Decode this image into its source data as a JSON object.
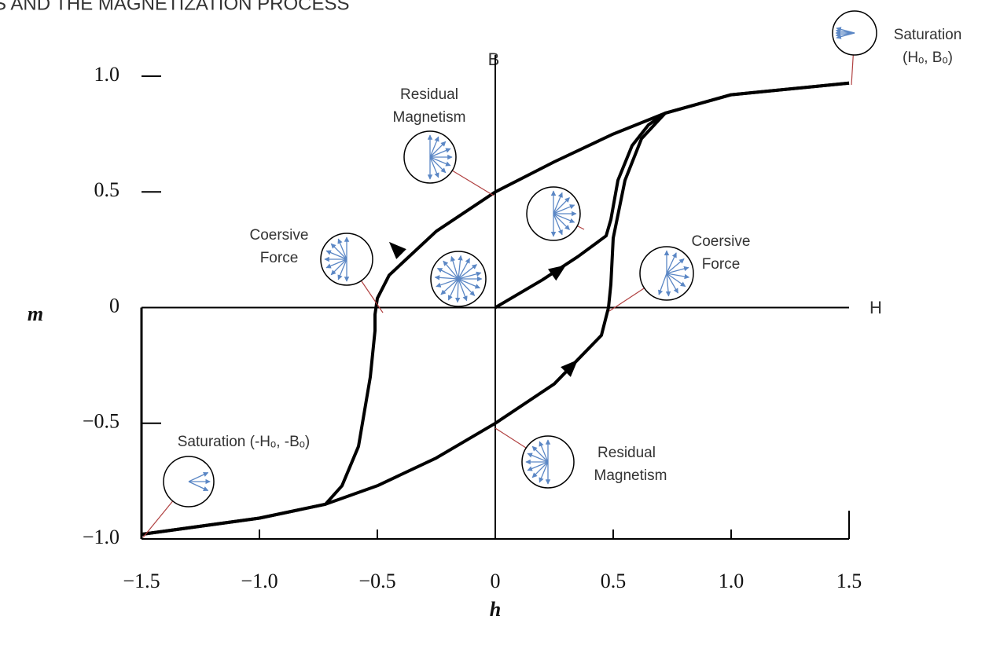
{
  "chart_data": {
    "type": "line",
    "title": "S AND THE MAGNETIZATION PROCESS",
    "x_label": "h",
    "y_label": "m",
    "x_axis_name": "H",
    "y_axis_name": "B",
    "xlim": [
      -1.5,
      1.5
    ],
    "ylim": [
      -1.0,
      1.0
    ],
    "xticks": [
      {
        "value": -1.5,
        "label": "−1.5"
      },
      {
        "value": -1.0,
        "label": "−1.0"
      },
      {
        "value": -0.5,
        "label": "−0.5"
      },
      0,
      0.5,
      {
        "value": 1.0,
        "label": "1.0"
      },
      1.5
    ],
    "yticks": [
      {
        "value": 1.0,
        "label": "1.0"
      },
      0.5,
      0,
      {
        "value": -0.5,
        "label": "−0.5"
      },
      {
        "value": -1.0,
        "label": "−1.0"
      }
    ],
    "series": [
      {
        "color": "#000000",
        "x": [
          1.5,
          1.0,
          0.72,
          0.5,
          0.25,
          0,
          -0.25,
          -0.45,
          -0.5,
          -0.51,
          -0.51,
          -0.53,
          -0.58,
          -0.65,
          -0.72,
          -1.0,
          -1.5
        ],
        "values": [
          0.97,
          0.92,
          0.84,
          0.75,
          0.63,
          0.5,
          0.33,
          0.14,
          0.04,
          -0.03,
          -0.1,
          -0.3,
          -0.6,
          -0.77,
          -0.85,
          -0.91,
          -0.98
        ]
      },
      {
        "color": "#000000",
        "x": [
          -1.5,
          -1.0,
          -0.72,
          -0.5,
          -0.25,
          0,
          0.25,
          0.45,
          0.48,
          0.49,
          0.5,
          0.55,
          0.62,
          0.72,
          1.0,
          1.5
        ],
        "values": [
          -0.98,
          -0.91,
          -0.85,
          -0.77,
          -0.65,
          -0.5,
          -0.33,
          -0.12,
          0,
          0.1,
          0.3,
          0.55,
          0.73,
          0.84,
          0.92,
          0.97
        ]
      },
      {
        "color": "#000000",
        "x": [
          0,
          0.2,
          0.35,
          0.47,
          0.49,
          0.52,
          0.58,
          0.65,
          0.72
        ],
        "values": [
          0,
          0.12,
          0.22,
          0.31,
          0.38,
          0.55,
          0.7,
          0.79,
          0.84
        ]
      }
    ],
    "annotations": [
      {
        "lines": [
          "Saturation",
          "(Hₒ, Bₒ)"
        ]
      },
      {
        "lines": [
          "Residual",
          "Magnetism"
        ]
      },
      {
        "lines": [
          "Coersive",
          "Force"
        ]
      },
      {
        "lines": [
          "Coersive",
          "Force"
        ]
      },
      {
        "lines": [
          "Residual",
          "Magnetism"
        ]
      },
      {
        "lines": [
          "Saturation (-Hₒ, -Bₒ)"
        ]
      }
    ]
  }
}
